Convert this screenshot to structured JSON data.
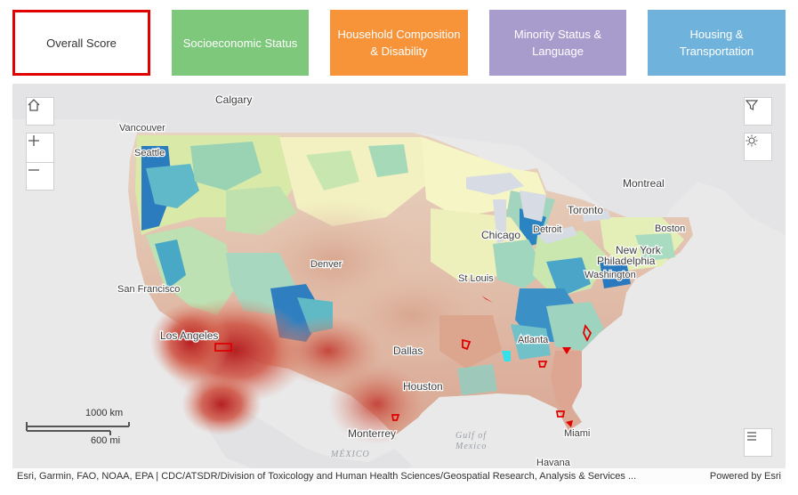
{
  "tabs": {
    "overall": "Overall Score",
    "socio": "Socioeconomic Status",
    "household": "Household Composition & Disability",
    "minority": "Minority Status & Language",
    "transport": "Housing & Transportation"
  },
  "tab_colors": {
    "socio": "#7ec87b",
    "household": "#f7943a",
    "minority": "#a89ccd",
    "transport": "#6fb3dd",
    "selected_border": "#e00000"
  },
  "map": {
    "cities": {
      "calgary": "Calgary",
      "vancouver": "Vancouver",
      "seattle": "Seattle",
      "montreal": "Montreal",
      "toronto": "Toronto",
      "detroit": "Detroit",
      "chicago": "Chicago",
      "boston": "Boston",
      "new_york": "New York",
      "philadelphia": "Philadelphia",
      "washington": "Washington",
      "denver": "Denver",
      "san_francisco": "San Francisco",
      "st_louis": "St Louis",
      "los_angeles": "Los Angeles",
      "atlanta": "Atlanta",
      "dallas": "Dallas",
      "houston": "Houston",
      "monterrey": "Monterrey",
      "miami": "Miami",
      "havana": "Havana"
    },
    "country_label": "MÉXICO",
    "water_label_1": "Gulf of",
    "water_label_2": "Mexico",
    "scale_km": "1000 km",
    "scale_mi": "600 mi",
    "attribution": "Esri, Garmin, FAO, NOAA, EPA | CDC/ATSDR/Division of Toxicology and Human Health Sciences/Geospatial Research, Analysis & Services ...",
    "powered_by": "Powered by Esri",
    "icons": {
      "home": "home-icon",
      "zoom_in": "plus-icon",
      "zoom_out": "minus-icon",
      "filter": "filter-icon",
      "basemap": "sun-icon",
      "legend": "list-icon"
    }
  }
}
